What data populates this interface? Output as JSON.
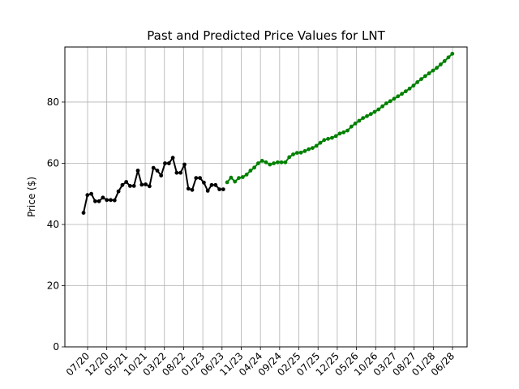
{
  "chart_data": {
    "type": "line",
    "title": "Past and Predicted Price Values for LNT",
    "xlabel": "",
    "ylabel": "Price ($)",
    "ylim": [
      0,
      98
    ],
    "yticks": [
      0,
      20,
      40,
      60,
      80
    ],
    "grid": true,
    "x_tick_labels": [
      "07/20",
      "12/20",
      "05/21",
      "10/21",
      "03/22",
      "08/22",
      "01/23",
      "06/23",
      "11/23",
      "04/24",
      "09/24",
      "02/25",
      "07/25",
      "12/25",
      "05/26",
      "10/26",
      "03/27",
      "08/27",
      "01/28",
      "06/28"
    ],
    "series": [
      {
        "color": "#000000",
        "values": [
          43.8,
          49.6,
          50.0,
          47.6,
          47.6,
          48.8,
          48.0,
          48.0,
          47.9,
          50.8,
          52.9,
          53.9,
          52.6,
          52.6,
          57.6,
          53.0,
          53.1,
          52.5,
          58.5,
          57.6,
          56.0,
          60.0,
          60.0,
          61.8,
          56.9,
          56.9,
          59.6,
          51.7,
          51.3,
          55.2,
          55.2,
          53.7,
          51.0,
          52.9,
          52.9,
          51.5,
          51.5
        ]
      },
      {
        "color": "#008000",
        "values": [
          53.8,
          55.3,
          54.0,
          55.2,
          55.5,
          56.3,
          57.6,
          58.6,
          60.0,
          60.8,
          60.3,
          59.6,
          60.0,
          60.3,
          60.3,
          60.3,
          62.0,
          62.9,
          63.4,
          63.5,
          64.0,
          64.6,
          65.0,
          65.7,
          66.7,
          67.6,
          68.0,
          68.3,
          68.9,
          69.7,
          70.1,
          70.7,
          72.0,
          73.0,
          73.9,
          74.8,
          75.4,
          76.1,
          76.8,
          77.6,
          78.6,
          79.6,
          80.3,
          81.1,
          81.9,
          82.7,
          83.5,
          84.4,
          85.4,
          86.5,
          87.5,
          88.5,
          89.4,
          90.3,
          91.2,
          92.3,
          93.4,
          94.6,
          95.8
        ]
      }
    ]
  }
}
